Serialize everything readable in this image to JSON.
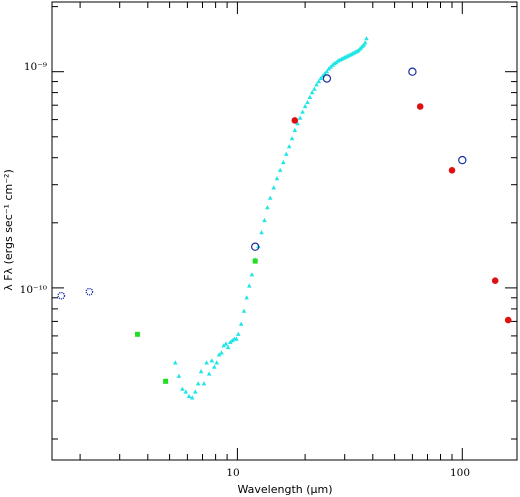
{
  "chart_data": {
    "type": "scatter",
    "x_scale": "log",
    "y_scale": "log",
    "xlim": [
      1.5,
      175
    ],
    "ylim": [
      1.6e-11,
      2.1e-09
    ],
    "xlabel": "Wavelength (μm)",
    "ylabel": "λ Fλ (ergs sec⁻¹ cm⁻²)",
    "x_tick_labels": [
      "10",
      "100"
    ],
    "y_tick_labels": [
      "10⁻¹⁰",
      "10⁻⁹"
    ],
    "grid": false,
    "legend": "none",
    "spectrum_color": "#21e5e5",
    "series": [
      {
        "marker": "dotted-circle",
        "color": "#1a2fa0",
        "points": [
          [
            1.65,
            9.2e-11
          ],
          [
            2.2,
            9.6e-11
          ]
        ]
      },
      {
        "marker": "filled-square",
        "color": "#22dd22",
        "points": [
          [
            3.6,
            6.1e-11
          ],
          [
            4.8,
            3.7e-11
          ],
          [
            12.0,
            1.33e-10
          ]
        ]
      },
      {
        "marker": "open-circle",
        "color": "#1a2fa0",
        "points": [
          [
            12.0,
            1.55e-10
          ],
          [
            25.0,
            9.3e-10
          ],
          [
            60.0,
            1e-09
          ],
          [
            100.0,
            3.9e-10
          ]
        ]
      },
      {
        "marker": "filled-circle",
        "color": "#dd1111",
        "points": [
          [
            18.0,
            5.95e-10
          ],
          [
            65.0,
            6.9e-10
          ],
          [
            90.0,
            3.5e-10
          ],
          [
            140.0,
            1.08e-10
          ],
          [
            160.0,
            7.1e-11
          ]
        ]
      }
    ],
    "spectrum_points": [
      [
        5.3,
        4.5e-11
      ],
      [
        5.5,
        3.9e-11
      ],
      [
        5.7,
        3.4e-11
      ],
      [
        5.9,
        3.3e-11
      ],
      [
        6.1,
        3.15e-11
      ],
      [
        6.3,
        3.1e-11
      ],
      [
        6.5,
        3.3e-11
      ],
      [
        6.7,
        3.6e-11
      ],
      [
        6.9,
        4.1e-11
      ],
      [
        7.1,
        3.6e-11
      ],
      [
        7.3,
        4.5e-11
      ],
      [
        7.5,
        4e-11
      ],
      [
        7.7,
        4.6e-11
      ],
      [
        7.9,
        4.3e-11
      ],
      [
        8.1,
        4.5e-11
      ],
      [
        8.3,
        4.9e-11
      ],
      [
        8.5,
        5e-11
      ],
      [
        8.7,
        5.4e-11
      ],
      [
        8.9,
        5.5e-11
      ],
      [
        9.1,
        5.3e-11
      ],
      [
        9.3,
        5.6e-11
      ],
      [
        9.5,
        5.7e-11
      ],
      [
        9.7,
        5.8e-11
      ],
      [
        9.9,
        5.8e-11
      ],
      [
        10.1,
        6.1e-11
      ],
      [
        10.4,
        6.8e-11
      ],
      [
        10.7,
        7.8e-11
      ],
      [
        11.0,
        9e-11
      ],
      [
        11.3,
        1.02e-10
      ],
      [
        11.6,
        1.15e-10
      ],
      [
        12.0,
        1.35e-10
      ],
      [
        12.4,
        1.55e-10
      ],
      [
        12.8,
        1.8e-10
      ],
      [
        13.2,
        2.05e-10
      ],
      [
        13.6,
        2.35e-10
      ],
      [
        14.0,
        2.6e-10
      ],
      [
        14.5,
        2.9e-10
      ],
      [
        15.0,
        3.2e-10
      ],
      [
        15.5,
        3.5e-10
      ],
      [
        16.0,
        3.8e-10
      ],
      [
        16.5,
        4.15e-10
      ],
      [
        17.0,
        4.5e-10
      ],
      [
        17.5,
        4.9e-10
      ],
      [
        18.0,
        5.35e-10
      ],
      [
        18.5,
        5.75e-10
      ],
      [
        19.0,
        6.1e-10
      ],
      [
        19.5,
        6.5e-10
      ],
      [
        20.0,
        6.9e-10
      ],
      [
        20.5,
        7.2e-10
      ],
      [
        21.0,
        7.6e-10
      ],
      [
        21.5,
        8e-10
      ],
      [
        22.0,
        8.3e-10
      ],
      [
        22.5,
        8.7e-10
      ],
      [
        23.0,
        9e-10
      ],
      [
        23.5,
        9.3e-10
      ],
      [
        24.0,
        9.55e-10
      ],
      [
        24.5,
        9.8e-10
      ],
      [
        25.0,
        1e-09
      ],
      [
        25.5,
        1.03e-09
      ],
      [
        26.0,
        1.05e-09
      ],
      [
        26.5,
        1.07e-09
      ],
      [
        27.0,
        1.09e-09
      ],
      [
        27.5,
        1.1e-09
      ],
      [
        28.0,
        1.12e-09
      ],
      [
        28.5,
        1.13e-09
      ],
      [
        29.0,
        1.14e-09
      ],
      [
        29.5,
        1.15e-09
      ],
      [
        30.0,
        1.16e-09
      ],
      [
        30.5,
        1.17e-09
      ],
      [
        31.0,
        1.18e-09
      ],
      [
        31.5,
        1.19e-09
      ],
      [
        32.0,
        1.2e-09
      ],
      [
        32.5,
        1.21e-09
      ],
      [
        33.0,
        1.22e-09
      ],
      [
        33.5,
        1.23e-09
      ],
      [
        34.0,
        1.24e-09
      ],
      [
        34.5,
        1.25e-09
      ],
      [
        35.0,
        1.27e-09
      ],
      [
        35.5,
        1.29e-09
      ],
      [
        36.0,
        1.31e-09
      ],
      [
        36.5,
        1.33e-09
      ],
      [
        37.0,
        1.36e-09
      ],
      [
        37.5,
        1.42e-09
      ]
    ]
  }
}
